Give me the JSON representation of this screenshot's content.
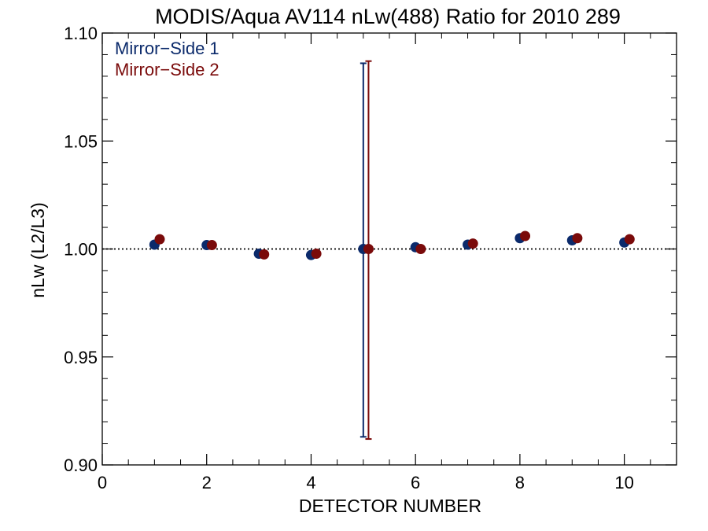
{
  "chart_data": {
    "type": "scatter",
    "title": "MODIS/Aqua AV114 nLw(488) Ratio for 2010 289",
    "xlabel": "DETECTOR NUMBER",
    "ylabel": "nLw (L2/L3)",
    "xlim": [
      0,
      11
    ],
    "ylim": [
      0.9,
      1.1
    ],
    "x_ticks": [
      0,
      2,
      4,
      6,
      8,
      10
    ],
    "x_tick_labels": [
      "0",
      "2",
      "4",
      "6",
      "8",
      "10"
    ],
    "y_ticks": [
      0.9,
      0.95,
      1.0,
      1.05,
      1.1
    ],
    "y_tick_labels": [
      "0.90",
      "0.95",
      "1.00",
      "1.05",
      "1.10"
    ],
    "reference_line": 1.0,
    "legend_position": "top-left",
    "series": [
      {
        "name": "Mirror−Side 1",
        "color": "#0b2a6b",
        "x": [
          1,
          2,
          3,
          4,
          5,
          6,
          7,
          8,
          9,
          10
        ],
        "y": [
          1.002,
          1.0018,
          0.9978,
          0.9972,
          1.0,
          1.0008,
          1.002,
          1.005,
          1.004,
          1.003
        ],
        "error_bars": [
          {
            "x": 5,
            "low": 0.913,
            "high": 1.086
          }
        ]
      },
      {
        "name": "Mirror−Side 2",
        "color": "#7a0a0a",
        "x": [
          1.1,
          2.1,
          3.1,
          4.1,
          5.1,
          6.1,
          7.1,
          8.1,
          9.1,
          10.1
        ],
        "y": [
          1.0045,
          1.0018,
          0.9975,
          0.9978,
          1.0,
          1.0,
          1.0025,
          1.006,
          1.005,
          1.0045
        ],
        "error_bars": [
          {
            "x": 5.1,
            "low": 0.912,
            "high": 1.087
          }
        ]
      }
    ]
  }
}
